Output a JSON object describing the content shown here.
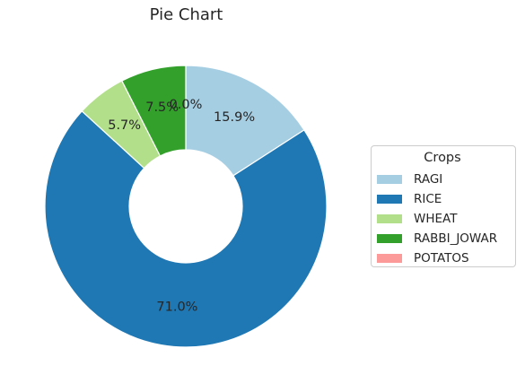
{
  "chart_data": {
    "type": "pie",
    "title": "Pie Chart",
    "donut": true,
    "start_angle_deg": 90,
    "direction": "clockwise",
    "slices": [
      {
        "label": "RAGI",
        "value": 15.9,
        "pct_text": "15.9%",
        "color": "#a6cee3"
      },
      {
        "label": "RICE",
        "value": 71.0,
        "pct_text": "71.0%",
        "color": "#1f78b4"
      },
      {
        "label": "WHEAT",
        "value": 5.7,
        "pct_text": "5.7%",
        "color": "#b2df8a"
      },
      {
        "label": "RABBI_JOWAR",
        "value": 7.5,
        "pct_text": "7.5%",
        "color": "#33a02c"
      },
      {
        "label": "POTATOS",
        "value": 0.0,
        "pct_text": "0.0%",
        "color": "#fb9a99"
      }
    ],
    "legend": {
      "title": "Crops",
      "placement": "center-right"
    }
  }
}
